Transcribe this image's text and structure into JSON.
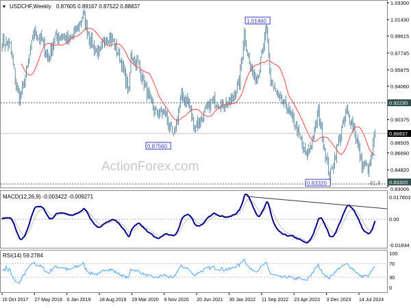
{
  "header": {
    "symbol": "USDCHF,Weekly",
    "ohlc": "0.87605 0.89167 0.87522 0.88837"
  },
  "watermark": "ActionForex.com",
  "colors": {
    "bars": "#5f8ba3",
    "ma": "#ff4040",
    "macd": "#00008b",
    "signal": "#c0c0c0",
    "rsi": "#4aa3ff",
    "label_bg": "#2f4f4f",
    "price_bg": "#000000",
    "annot": "#3a3ac0"
  },
  "chart_data": [
    {
      "type": "line",
      "title": "USDCHF,Weekly",
      "ylim": [
        0.83005,
        1.033
      ],
      "y_ticks": [
        "1.03300",
        "1.01430",
        "0.99615",
        "0.97745",
        "0.95875",
        "0.94060",
        "0.90375",
        "0.86690",
        "0.84820",
        "0.83005"
      ],
      "x_ticks": [
        "15 Oct 2017",
        "27 May 2018",
        "6 Jan 2019",
        "18 Aug 2019",
        "29 Mar 2020",
        "8 Nov 2020",
        "20 Jun 2021",
        "30 Jan 2022",
        "11 Sep 2022",
        "23 Apr 2023",
        "3 Dec 2023",
        "14 Jul 2024"
      ],
      "series": [
        {
          "kind": "price-bars",
          "points": [
            [
              "2017-10-15",
              0.99
            ],
            [
              "2017-12-10",
              0.985
            ],
            [
              "2018-01-28",
              0.935
            ],
            [
              "2018-02-18",
              0.928
            ],
            [
              "2018-04-01",
              0.955
            ],
            [
              "2018-05-20",
              1.0
            ],
            [
              "2018-07-15",
              0.992
            ],
            [
              "2018-09-02",
              0.97
            ],
            [
              "2018-10-14",
              0.995
            ],
            [
              "2018-12-02",
              0.997
            ],
            [
              "2019-01-20",
              0.99
            ],
            [
              "2019-03-10",
              1.002
            ],
            [
              "2019-04-28",
              1.02
            ],
            [
              "2019-06-16",
              0.99
            ],
            [
              "2019-08-18",
              0.975
            ],
            [
              "2019-09-29",
              0.995
            ],
            [
              "2019-11-17",
              0.992
            ],
            [
              "2020-01-12",
              0.97
            ],
            [
              "2020-03-08",
              0.935
            ],
            [
              "2020-03-22",
              0.975
            ],
            [
              "2020-05-10",
              0.965
            ],
            [
              "2020-07-19",
              0.93
            ],
            [
              "2020-09-13",
              0.91
            ],
            [
              "2020-11-08",
              0.912
            ],
            [
              "2021-01-10",
              0.884
            ],
            [
              "2021-03-07",
              0.93
            ],
            [
              "2021-04-18",
              0.925
            ],
            [
              "2021-06-06",
              0.895
            ],
            [
              "2021-08-01",
              0.908
            ],
            [
              "2021-10-10",
              0.925
            ],
            [
              "2021-12-19",
              0.92
            ],
            [
              "2022-02-06",
              0.922
            ],
            [
              "2022-04-10",
              0.945
            ],
            [
              "2022-05-15",
              1.0
            ],
            [
              "2022-06-26",
              0.96
            ],
            [
              "2022-08-14",
              0.95
            ],
            [
              "2022-10-16",
              1.003
            ],
            [
              "2022-11-13",
              0.945
            ],
            [
              "2023-01-15",
              0.925
            ],
            [
              "2023-03-12",
              0.915
            ],
            [
              "2023-05-07",
              0.895
            ],
            [
              "2023-07-16",
              0.862
            ],
            [
              "2023-09-03",
              0.885
            ],
            [
              "2023-10-08",
              0.912
            ],
            [
              "2023-12-24",
              0.84
            ],
            [
              "2024-02-04",
              0.867
            ],
            [
              "2024-04-21",
              0.913
            ],
            [
              "2024-06-09",
              0.895
            ],
            [
              "2024-08-04",
              0.855
            ],
            [
              "2024-09-22",
              0.848
            ],
            [
              "2024-11-03",
              0.888
            ]
          ]
        },
        {
          "kind": "sma",
          "name": "",
          "period": 20
        }
      ],
      "annotations": [
        {
          "label": "1.01460",
          "type": "high"
        },
        {
          "label": "0.87560",
          "type": "low"
        },
        {
          "label": "0.83320",
          "type": "low"
        },
        {
          "label": "61.8",
          "type": "fibonacci"
        }
      ],
      "levels": [
        {
          "value": "0.92230",
          "style": "dashed"
        },
        {
          "value": "0.83320",
          "style": "dashed"
        },
        {
          "value": "0.88837",
          "style": "current-price"
        }
      ],
      "hidden_tick": "0.88505"
    },
    {
      "type": "line",
      "title": "MACD(12,26,9) -0.003422 -0.009271",
      "ylim": [
        -0.01834,
        0.017603
      ],
      "y_ticks": [
        "0.017603",
        "0.00",
        "-0.01834"
      ],
      "series": [
        {
          "kind": "macd"
        },
        {
          "kind": "signal"
        }
      ],
      "trendline": "descending from 2022 peak"
    },
    {
      "type": "line",
      "title": "RSI(14) 59.2784",
      "ylim": [
        0,
        100
      ],
      "y_ticks": [
        "100",
        "70",
        "30",
        "0"
      ],
      "series": [
        {
          "kind": "rsi",
          "period": 14
        }
      ]
    }
  ]
}
